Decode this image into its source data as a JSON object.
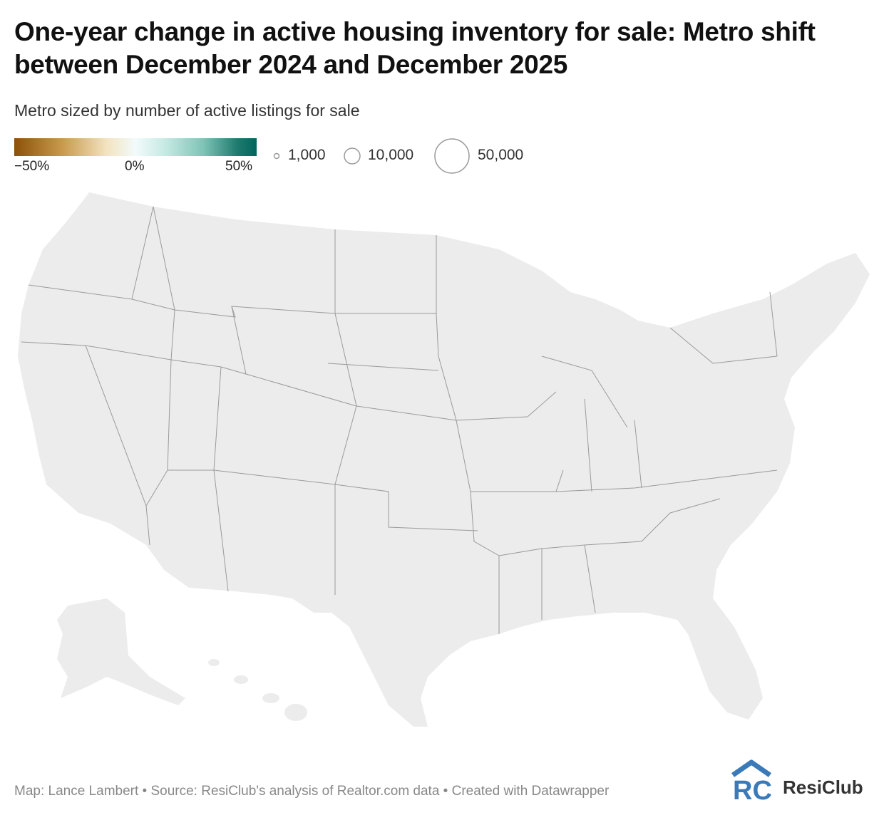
{
  "title": "One-year change in active housing inventory for sale: Metro shift between December 2024 and December 2025",
  "subtitle": "Metro sized by number of active listings for sale",
  "legend": {
    "color_ticks": [
      "−50%",
      "0%",
      "50%"
    ],
    "color_scale": {
      "min_pct": -50,
      "mid_pct": 0,
      "max_pct": 50,
      "low_color": "#8c510a",
      "mid_color": "#f2fbfb",
      "high_color": "#01665e"
    },
    "sizes": [
      {
        "label": "1,000",
        "listings": 1000
      },
      {
        "label": "10,000",
        "listings": 10000
      },
      {
        "label": "50,000",
        "listings": 50000
      }
    ]
  },
  "map": {
    "land_color": "#ececec",
    "border_color": "#9a9a9a",
    "bubble_stroke": "#555555"
  },
  "footer": "Map: Lance Lambert • Source: ResiClub's analysis of Realtor.com data • Created with Datawrapper",
  "brand": {
    "name": "ResiClub",
    "logo_letters": "RC",
    "logo_color": "#3a7ab8"
  }
}
